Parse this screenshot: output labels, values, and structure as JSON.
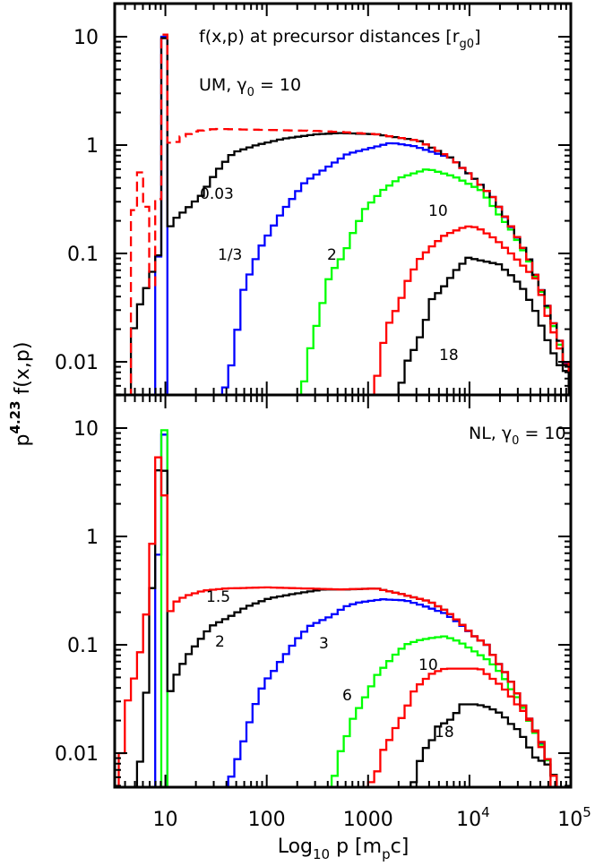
{
  "chart_data": [
    {
      "type": "line",
      "panel": "top",
      "title": {
        "main": "f(x,p) at precursor distances [r",
        "sub": "g0",
        "close": "]"
      },
      "subtitle": {
        "pre": "UM, γ",
        "sub": "0",
        "post": " = 10"
      },
      "xlabel": {
        "pre": "Log",
        "sub": "10",
        "mid": " p [m",
        "sub2": "p",
        "post": "c]"
      },
      "ylabel": {
        "pre": "p",
        "sup": "4.23",
        "post": " f(x,p)"
      },
      "x_scale": "log",
      "y_scale": "log",
      "xlim": [
        3.16,
        100000
      ],
      "ylim": [
        0.005,
        20
      ],
      "y_ticks": [
        {
          "value": 0.01,
          "label": "0.01"
        },
        {
          "value": 0.1,
          "label": "0.1"
        },
        {
          "value": 1,
          "label": "1"
        },
        {
          "value": 10,
          "label": "10"
        }
      ],
      "grid": false,
      "series": [
        {
          "label": "1/3",
          "color": "#0000ff",
          "dashed": false,
          "segments": [
            {
              "p": [
                8.51,
                9.77
              ],
              "f": [
                0.093,
                10.0
              ]
            },
            {
              "p": [
                39.8,
                47.9,
                57.5,
                85.1,
                141,
                240,
                631,
                1700,
                2880,
                6610,
                11200,
                17000,
                25700,
                38000,
                57500,
                81300,
                97700
              ],
              "f": [
                0.0058,
                0.0123,
                0.0437,
                0.11,
                0.24,
                0.457,
                0.83,
                1.05,
                0.977,
                0.76,
                0.49,
                0.331,
                0.175,
                0.093,
                0.035,
                0.0138,
                0.0071
              ]
            }
          ]
        },
        {
          "label": "2",
          "color": "#00ff00",
          "dashed": false,
          "segments": [
            {
              "p": [
                229,
                263,
                339,
                417,
                589,
                692,
                933,
                1380,
                2090,
                3890,
                7080,
                13200,
                19500,
                25700,
                38000,
                57500,
                81300,
                97700
              ],
              "f": [
                0.0058,
                0.0123,
                0.0295,
                0.063,
                0.1,
                0.148,
                0.257,
                0.38,
                0.501,
                0.603,
                0.513,
                0.38,
                0.229,
                0.166,
                0.089,
                0.0339,
                0.0126,
                0.0071
              ]
            }
          ]
        },
        {
          "label": "10",
          "color": "#ff0000",
          "dashed": false,
          "segments": [
            {
              "p": [
                1200,
                1380,
                1580,
                1820,
                2090,
                2340,
                3160,
                4070,
                5750,
                9330,
                12000,
                18200,
                25700,
                36300,
                46800,
                57500,
                70800,
                93300
              ],
              "f": [
                0.0065,
                0.0138,
                0.0219,
                0.0282,
                0.0363,
                0.0513,
                0.087,
                0.112,
                0.148,
                0.178,
                0.174,
                0.135,
                0.1,
                0.0724,
                0.0562,
                0.0282,
                0.0166,
                0.0085
              ]
            }
          ]
        },
        {
          "label": "18",
          "color": "#000000",
          "dashed": false,
          "segments": [
            {
              "p": [
                2090,
                2340,
                2750,
                3160,
                3720,
                4070,
                5370,
                6170,
                7590,
                9770,
                13800,
                19500,
                25700,
                33100,
                44700,
                57500,
                75900,
                93300
              ],
              "f": [
                0.0058,
                0.0095,
                0.0123,
                0.0158,
                0.0245,
                0.0363,
                0.0468,
                0.0562,
                0.0724,
                0.0912,
                0.0851,
                0.0794,
                0.063,
                0.049,
                0.0295,
                0.0166,
                0.0095,
                0.0079
              ]
            }
          ]
        },
        {
          "label": "0.03",
          "color": "#000000",
          "dashed": false,
          "segments": [
            {
              "p": [
                4.9,
                5.62,
                6.46,
                7.41,
                8.51,
                9.77,
                11.2,
                12.9,
                15.8,
                22.9,
                31.6,
                46.8,
                79.4,
                151,
                316,
                537,
                1200,
                3160,
                6610,
                11200,
                17000,
                25700,
                38000,
                57500,
                81300,
                97700
              ],
              "f": [
                0.0204,
                0.0339,
                0.0479,
                0.0676,
                0.0955,
                9.77,
                0.178,
                0.214,
                0.251,
                0.347,
                0.562,
                0.851,
                1.0,
                1.15,
                1.26,
                1.29,
                1.26,
                1.1,
                0.76,
                0.49,
                0.331,
                0.178,
                0.093,
                0.035,
                0.0138,
                0.0063
              ]
            }
          ]
        },
        {
          "label": "",
          "color": "#ff0000",
          "dashed": true,
          "segments": [
            {
              "p": [
                4.9,
                5.62,
                6.46,
                7.41,
                8.51,
                9.77,
                11.2,
                12.9,
                14.8,
                20,
                31.6,
                100,
                316,
                537,
                1200,
                3160,
                6610,
                11200,
                17000,
                25700,
                38000,
                57500,
                81300,
                97700
              ],
              "f": [
                0.251,
                0.562,
                0.269,
                0.049,
                0.316,
                10.5,
                1.05,
                1.07,
                1.2,
                1.35,
                1.41,
                1.38,
                1.35,
                1.32,
                1.26,
                1.1,
                0.76,
                0.49,
                0.331,
                0.178,
                0.093,
                0.035,
                0.0138,
                0.0074
              ]
            }
          ]
        }
      ]
    },
    {
      "type": "line",
      "panel": "bottom",
      "subtitle": {
        "pre": "NL, γ",
        "sub": "0",
        "post": " = 10"
      },
      "x_scale": "log",
      "y_scale": "log",
      "xlim": [
        3.16,
        100000
      ],
      "ylim": [
        0.005,
        20
      ],
      "x_ticks": [
        {
          "value": 10,
          "base": "10",
          "sup": ""
        },
        {
          "value": 100,
          "base": "100",
          "sup": ""
        },
        {
          "value": 1000,
          "base": "1000",
          "sup": ""
        },
        {
          "value": 10000,
          "base": "10",
          "sup": "4"
        },
        {
          "value": 100000,
          "base": "10",
          "sup": "5"
        }
      ],
      "y_ticks": [
        {
          "value": 0.01,
          "label": "0.01"
        },
        {
          "value": 0.1,
          "label": "0.1"
        },
        {
          "value": 1,
          "label": "1"
        },
        {
          "value": 10,
          "label": "10"
        }
      ],
      "grid": false,
      "series": [
        {
          "label": "3",
          "color": "#0000ff",
          "dashed": false,
          "segments": [
            {
              "p": [
                8.51,
                9.77
              ],
              "f": [
                0.676,
                8.7
              ]
            },
            {
              "p": [
                41.7,
                47.9,
                55,
                63.1,
                74.1,
                85.1,
                97.7,
                112,
                132,
                151,
                174,
                195,
                229,
                263,
                339,
                447,
                589,
                794,
                1380,
                2340,
                3550,
                5750,
                7940,
                11200,
                14800,
                18200,
                24000,
                31600,
                40700,
                53700,
                66100
              ],
              "f": [
                0.005,
                0.0074,
                0.0105,
                0.0158,
                0.0251,
                0.0363,
                0.0468,
                0.0537,
                0.0676,
                0.0794,
                0.0955,
                0.11,
                0.129,
                0.148,
                0.166,
                0.186,
                0.224,
                0.245,
                0.263,
                0.257,
                0.229,
                0.195,
                0.158,
                0.12,
                0.1,
                0.0724,
                0.0513,
                0.0316,
                0.019,
                0.0112,
                0.0063
              ]
            }
          ]
        },
        {
          "label": "6",
          "color": "#00ff00",
          "dashed": false,
          "segments": [
            {
              "p": [
                9.77
              ],
              "f": [
                9.55
              ]
            },
            {
              "p": [
                447,
                513,
                589,
                692,
                794,
                912,
                1050,
                1200,
                1480,
                1820,
                2340,
                3160,
                4070,
                5750,
                7940,
                11200,
                15800,
                20900,
                25700,
                31600,
                40700,
                53700,
                66100
              ],
              "f": [
                0.005,
                0.0095,
                0.0126,
                0.02,
                0.0251,
                0.0316,
                0.0398,
                0.0513,
                0.0646,
                0.0794,
                0.1,
                0.11,
                0.115,
                0.12,
                0.107,
                0.087,
                0.0708,
                0.0537,
                0.0389,
                0.0302,
                0.0182,
                0.011,
                0.0063
              ]
            }
          ]
        },
        {
          "label": "10",
          "color": "#ff0000",
          "dashed": false,
          "segments": [
            {
              "p": [
                1120,
                1260,
                1410,
                1620,
                1860,
                2190,
                2510,
                2880,
                3550,
                4370,
                5750,
                9330,
                12600,
                15800,
                19500,
                24000,
                29500,
                36300,
                44700,
                53700,
                61700
              ],
              "f": [
                0.0054,
                0.0072,
                0.0107,
                0.0132,
                0.017,
                0.0219,
                0.0288,
                0.0389,
                0.0468,
                0.055,
                0.0603,
                0.0603,
                0.0603,
                0.0513,
                0.0437,
                0.0363,
                0.0282,
                0.0229,
                0.0158,
                0.0102,
                0.0069
              ]
            }
          ]
        },
        {
          "label": "18",
          "color": "#000000",
          "dashed": false,
          "segments": [
            {
              "p": [
                2880,
                3240,
                3720,
                4270,
                4790,
                5500,
                6460,
                7590,
                8320,
                12000,
                15800,
                20900,
                25700,
                31600,
                38000,
                46800,
                57500,
                63100
              ],
              "f": [
                0.0054,
                0.0085,
                0.0112,
                0.0132,
                0.0174,
                0.0186,
                0.0204,
                0.024,
                0.0282,
                0.0282,
                0.0263,
                0.0229,
                0.0186,
                0.0158,
                0.0117,
                0.0085,
                0.0085,
                0.0063
              ]
            }
          ]
        },
        {
          "label": "2",
          "color": "#000000",
          "dashed": false,
          "segments": [
            {
              "p": [
                5.62,
                6.46,
                7.41,
                8.51,
                9.77,
                11.2,
                12.3,
                16.2,
                20.9,
                28.2,
                41.7,
                63.1,
                107,
                186,
                363,
                631,
                1200,
                2090,
                4070,
                6170,
                7940,
                11200,
                14800,
                18200,
                24000,
                31600,
                40700,
                53700,
                66100
              ],
              "f": [
                0.0083,
                0.0363,
                0.331,
                4.07,
                4.07,
                0.0372,
                0.049,
                0.0776,
                0.105,
                0.148,
                0.178,
                0.224,
                0.269,
                0.295,
                0.324,
                0.324,
                0.331,
                0.295,
                0.251,
                0.2,
                0.162,
                0.12,
                0.1,
                0.0724,
                0.0513,
                0.0316,
                0.019,
                0.0117,
                0.0062
              ]
            }
          ]
        },
        {
          "label": "1.5",
          "color": "#ff0000",
          "dashed": false,
          "segments": [
            {
              "p": [
                3.72,
                4.27,
                4.9,
                5.62,
                6.46,
                7.41,
                8.51,
                9.77,
                11.2,
                12.9,
                15.8,
                24,
                39.8,
                100,
                537,
                1200,
                2090,
                4070,
                6170,
                7940,
                11200,
                14800,
                18200,
                24000,
                31600,
                40700,
                53700,
                66100
              ],
              "f": [
                0.01,
                0.0309,
                0.049,
                0.0851,
                0.191,
                0.851,
                5.37,
                2.4,
                0.204,
                0.251,
                0.282,
                0.316,
                0.331,
                0.339,
                0.324,
                0.331,
                0.295,
                0.251,
                0.2,
                0.162,
                0.12,
                0.1,
                0.0724,
                0.0513,
                0.0316,
                0.019,
                0.0117,
                0.0062
              ]
            }
          ]
        }
      ]
    }
  ]
}
